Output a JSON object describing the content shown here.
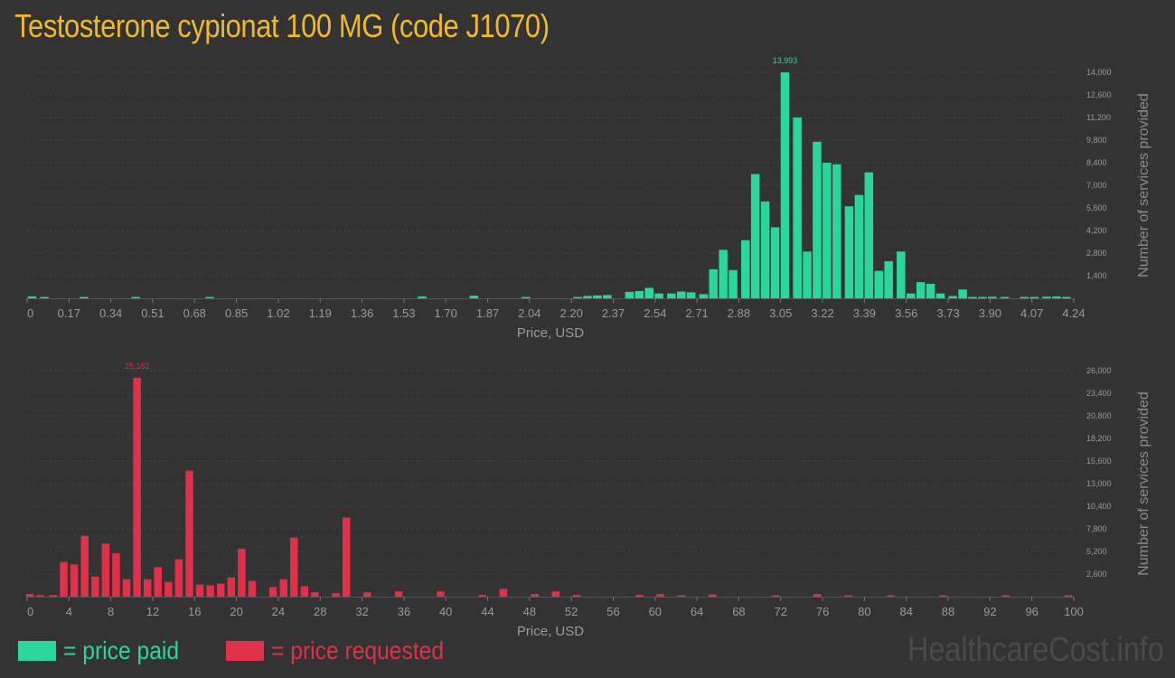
{
  "title": "Testosterone cypionat 100 MG (code J1070)",
  "colors": {
    "paid": "#2ad69a",
    "requested": "#e0304a",
    "title": "#f0b929",
    "background": "#333333"
  },
  "legend": {
    "paid": "= price paid",
    "requested": "= price requested"
  },
  "watermark": "HealthcareCost.info",
  "chart_data": [
    {
      "type": "bar",
      "color": "#2ad69a",
      "xlabel": "Price, USD",
      "ylabel": "Number of services provided",
      "xlim": [
        0,
        4.24
      ],
      "ylim": [
        0,
        14000
      ],
      "x_ticks": [
        "0",
        "0.17",
        "0.34",
        "0.51",
        "0.68",
        "0.85",
        "1.02",
        "1.19",
        "1.36",
        "1.53",
        "1.70",
        "1.87",
        "2.04",
        "2.20",
        "2.37",
        "2.54",
        "2.71",
        "2.88",
        "3.05",
        "3.22",
        "3.39",
        "3.56",
        "3.73",
        "3.90",
        "4.07",
        "4.24"
      ],
      "y_ticks": [
        "1,400",
        "2,800",
        "4,200",
        "5,600",
        "7,000",
        "8,400",
        "9,800",
        "11,200",
        "12,600",
        "14,000"
      ],
      "peak_label": "13,993",
      "x": [
        0.02,
        0.07,
        0.23,
        0.44,
        0.74,
        1.6,
        1.81,
        2.02,
        2.23,
        2.27,
        2.31,
        2.35,
        2.44,
        2.48,
        2.52,
        2.56,
        2.61,
        2.65,
        2.69,
        2.74,
        2.78,
        2.82,
        2.86,
        2.91,
        2.95,
        2.99,
        3.03,
        3.07,
        3.12,
        3.16,
        3.2,
        3.24,
        3.28,
        3.33,
        3.37,
        3.41,
        3.45,
        3.49,
        3.54,
        3.58,
        3.62,
        3.66,
        3.7,
        3.75,
        3.79,
        3.83,
        3.87,
        3.91,
        3.96,
        4.04,
        4.08,
        4.13,
        4.17,
        4.21
      ],
      "values": [
        120,
        60,
        40,
        40,
        80,
        120,
        160,
        50,
        50,
        150,
        180,
        200,
        400,
        450,
        650,
        300,
        300,
        420,
        370,
        260,
        1800,
        3000,
        1750,
        3600,
        7700,
        6000,
        4400,
        13993,
        11200,
        2900,
        9700,
        8400,
        8300,
        5700,
        6400,
        7800,
        1700,
        2300,
        2900,
        300,
        1000,
        900,
        300,
        140,
        550,
        40,
        40,
        100,
        80,
        40,
        60,
        100,
        120,
        60
      ]
    },
    {
      "type": "bar",
      "color": "#e0304a",
      "xlabel": "Price, USD",
      "ylabel": "Number of services provided",
      "xlim": [
        0,
        100
      ],
      "ylim": [
        0,
        26000
      ],
      "x_ticks": [
        "0",
        "4",
        "8",
        "12",
        "16",
        "20",
        "24",
        "28",
        "32",
        "36",
        "40",
        "44",
        "48",
        "52",
        "56",
        "60",
        "64",
        "68",
        "72",
        "76",
        "80",
        "84",
        "88",
        "92",
        "96",
        "100"
      ],
      "y_ticks": [
        "2,600",
        "5,200",
        "7,800",
        "10,400",
        "13,000",
        "15,600",
        "18,200",
        "20,800",
        "23,400",
        "26,000"
      ],
      "peak_label": "25,182",
      "x": [
        0.25,
        1.25,
        2.5,
        3.5,
        4.5,
        5.5,
        6.5,
        7.5,
        8.5,
        9.5,
        10.5,
        11.5,
        12.5,
        13.5,
        14.5,
        15.5,
        16.5,
        17.5,
        18.5,
        19.5,
        20.5,
        21.5,
        23.5,
        24.5,
        25.5,
        26.5,
        27.5,
        29.5,
        30.5,
        32.5,
        35.5,
        39.5,
        43.5,
        45.5,
        48.5,
        50.5,
        52.5,
        58.5,
        60.5,
        62.5,
        65.5,
        71.5,
        75.5,
        78.5,
        82.5,
        87.5,
        93.5,
        99.5
      ],
      "values": [
        300,
        180,
        180,
        4000,
        3700,
        7000,
        2300,
        6100,
        5000,
        2000,
        25182,
        2000,
        3400,
        1700,
        4300,
        14500,
        1400,
        1300,
        1500,
        2200,
        5500,
        1800,
        1100,
        2000,
        6800,
        1200,
        500,
        400,
        9100,
        500,
        600,
        600,
        200,
        900,
        300,
        600,
        200,
        200,
        300,
        150,
        250,
        100,
        300,
        150,
        100,
        100,
        100,
        150
      ]
    }
  ]
}
